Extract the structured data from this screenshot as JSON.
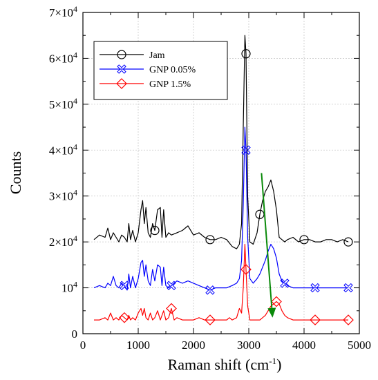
{
  "chart_data": {
    "type": "line",
    "xlabel": "Raman shift (cm",
    "xlabel_sup": "-1",
    "xlabel_close": ")",
    "ylabel": "Counts",
    "xlim": [
      0,
      5000
    ],
    "ylim": [
      0,
      70000
    ],
    "grid": true,
    "legend_position": "top-left",
    "x_ticks": [
      {
        "value": 0,
        "label": "0"
      },
      {
        "value": 1000,
        "label": "1000"
      },
      {
        "value": 2000,
        "label": "2000"
      },
      {
        "value": 3000,
        "label": "3000"
      },
      {
        "value": 4000,
        "label": "4000"
      },
      {
        "value": 5000,
        "label": "5000"
      }
    ],
    "y_ticks": [
      {
        "value": 0,
        "label": "0",
        "mantissa": "",
        "exp": ""
      },
      {
        "value": 10000,
        "label": "",
        "mantissa": "10",
        "exp": "4"
      },
      {
        "value": 20000,
        "label": "",
        "mantissa": "2×10",
        "exp": "4"
      },
      {
        "value": 30000,
        "label": "",
        "mantissa": "3×10",
        "exp": "4"
      },
      {
        "value": 40000,
        "label": "",
        "mantissa": "4×10",
        "exp": "4"
      },
      {
        "value": 50000,
        "label": "",
        "mantissa": "5×10",
        "exp": "4"
      },
      {
        "value": 60000,
        "label": "",
        "mantissa": "6×10",
        "exp": "4"
      },
      {
        "value": 70000,
        "label": "",
        "mantissa": "7×10",
        "exp": "4"
      }
    ],
    "series": [
      {
        "name": "Jam",
        "color": "#000000",
        "marker": "circle",
        "marker_x": [
          1300,
          2300,
          2950,
          3200,
          4000,
          4800
        ],
        "x": [
          200,
          300,
          400,
          450,
          500,
          550,
          600,
          650,
          700,
          750,
          800,
          830,
          860,
          900,
          950,
          1000,
          1050,
          1080,
          1110,
          1140,
          1180,
          1220,
          1260,
          1300,
          1350,
          1400,
          1430,
          1460,
          1500,
          1550,
          1600,
          1700,
          1800,
          1900,
          2000,
          2100,
          2200,
          2300,
          2400,
          2500,
          2600,
          2700,
          2780,
          2830,
          2870,
          2900,
          2930,
          2950,
          2980,
          3020,
          3080,
          3150,
          3200,
          3250,
          3300,
          3350,
          3400,
          3450,
          3500,
          3550,
          3600,
          3650,
          3700,
          3800,
          3900,
          4000,
          4100,
          4200,
          4300,
          4400,
          4500,
          4600,
          4700,
          4800
        ],
        "y": [
          20500,
          21500,
          21000,
          23000,
          20500,
          22000,
          21000,
          20000,
          21500,
          21000,
          20000,
          24000,
          20500,
          22500,
          20000,
          22000,
          27000,
          29000,
          24000,
          27500,
          22000,
          21000,
          24000,
          22500,
          27000,
          27500,
          21000,
          27000,
          21000,
          22000,
          21500,
          22000,
          22500,
          23500,
          21500,
          22000,
          21000,
          20500,
          20500,
          21000,
          20500,
          19000,
          18500,
          19500,
          24000,
          45000,
          65000,
          61000,
          30000,
          20000,
          19500,
          22000,
          26000,
          29000,
          31000,
          32000,
          33500,
          31000,
          27000,
          21000,
          20500,
          20000,
          20500,
          21000,
          20000,
          20500,
          20500,
          20000,
          20000,
          20500,
          20500,
          20000,
          20500,
          20000
        ]
      },
      {
        "name": "GNP 0.05%",
        "color": "#0000ff",
        "marker": "x",
        "marker_x": [
          750,
          1600,
          2300,
          2950,
          3650,
          4200,
          4800
        ],
        "x": [
          200,
          300,
          400,
          450,
          500,
          550,
          600,
          650,
          700,
          750,
          800,
          830,
          860,
          900,
          950,
          1000,
          1050,
          1080,
          1110,
          1140,
          1180,
          1220,
          1260,
          1300,
          1350,
          1400,
          1430,
          1460,
          1500,
          1550,
          1600,
          1700,
          1800,
          1900,
          2000,
          2100,
          2200,
          2300,
          2400,
          2500,
          2600,
          2700,
          2780,
          2830,
          2870,
          2900,
          2930,
          2950,
          2980,
          3020,
          3080,
          3150,
          3200,
          3250,
          3300,
          3350,
          3400,
          3450,
          3500,
          3550,
          3600,
          3650,
          3700,
          3800,
          3900,
          4000,
          4100,
          4200,
          4300,
          4400,
          4500,
          4600,
          4700,
          4800
        ],
        "y": [
          10000,
          10500,
          10000,
          11000,
          10500,
          12500,
          10500,
          10000,
          11000,
          10500,
          9500,
          13000,
          10000,
          12500,
          10000,
          12000,
          15500,
          16000,
          12500,
          15000,
          11500,
          10500,
          14000,
          11500,
          15000,
          14500,
          10500,
          14500,
          10500,
          10000,
          10500,
          11500,
          11000,
          11500,
          11000,
          10500,
          10000,
          9500,
          10000,
          10000,
          10000,
          10500,
          11000,
          12000,
          16000,
          28000,
          45000,
          40000,
          21000,
          12000,
          11000,
          12000,
          13000,
          14500,
          16000,
          18000,
          19500,
          18500,
          16500,
          13000,
          11500,
          11000,
          10500,
          10000,
          10000,
          10000,
          10000,
          10000,
          10000,
          10000,
          10000,
          10000,
          10000,
          10000
        ]
      },
      {
        "name": "GNP 1.5%",
        "color": "#ff0000",
        "marker": "diamond",
        "marker_x": [
          750,
          1600,
          2300,
          2950,
          3500,
          4200,
          4800
        ],
        "x": [
          200,
          300,
          400,
          450,
          500,
          550,
          600,
          650,
          700,
          750,
          800,
          830,
          860,
          900,
          950,
          1000,
          1050,
          1080,
          1110,
          1140,
          1180,
          1220,
          1260,
          1300,
          1350,
          1400,
          1430,
          1460,
          1500,
          1550,
          1600,
          1650,
          1700,
          1800,
          1900,
          2000,
          2100,
          2200,
          2300,
          2400,
          2500,
          2600,
          2650,
          2700,
          2780,
          2830,
          2870,
          2900,
          2930,
          2950,
          2980,
          3020,
          3080,
          3150,
          3200,
          3250,
          3300,
          3350,
          3400,
          3450,
          3500,
          3550,
          3600,
          3650,
          3700,
          3800,
          3900,
          4000,
          4100,
          4200,
          4300,
          4400,
          4500,
          4600,
          4700,
          4800
        ],
        "y": [
          3000,
          3000,
          3500,
          3000,
          4500,
          3000,
          3500,
          3000,
          4000,
          3500,
          3000,
          4000,
          3000,
          3500,
          3000,
          4500,
          5500,
          4000,
          5500,
          3500,
          3000,
          4500,
          3000,
          3500,
          5000,
          3000,
          4000,
          5000,
          3000,
          3500,
          5500,
          3000,
          3500,
          3000,
          3000,
          3000,
          3500,
          3000,
          3000,
          3000,
          3000,
          3000,
          3500,
          3000,
          3500,
          5500,
          4500,
          10000,
          19500,
          14000,
          6000,
          3000,
          3000,
          3000,
          3000,
          3500,
          4000,
          5000,
          6000,
          6500,
          7000,
          6500,
          5000,
          4000,
          3500,
          3000,
          3000,
          3000,
          3000,
          3000,
          3000,
          3000,
          3000,
          3000,
          3000,
          3000
        ]
      }
    ],
    "annotation_arrow": {
      "color": "#0a8a0a",
      "x_start": 3230,
      "y_start": 35000,
      "x_end": 3430,
      "y_end": 3500
    }
  }
}
